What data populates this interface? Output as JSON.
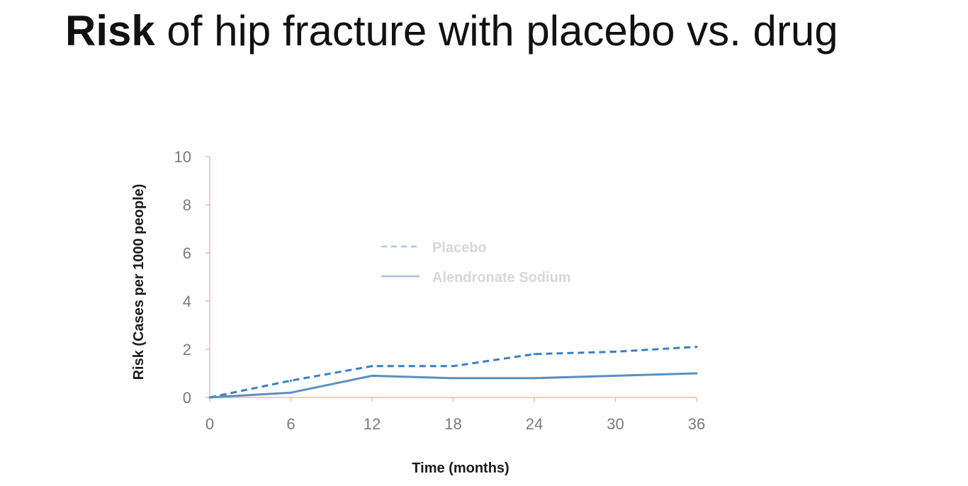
{
  "slide": {
    "title_bold": "Risk",
    "title_rest": " of hip fracture with placebo vs. drug"
  },
  "chart_data": {
    "type": "line",
    "title": "",
    "xlabel": "Time (months)",
    "ylabel": "Risk (Cases per 1000 people)",
    "x": [
      0,
      6,
      12,
      18,
      24,
      30,
      36
    ],
    "xlim": [
      0,
      36
    ],
    "ylim": [
      0,
      10
    ],
    "x_ticks": [
      "0",
      "6",
      "12",
      "18",
      "24",
      "30",
      "36"
    ],
    "y_ticks": [
      "0",
      "2",
      "4",
      "6",
      "8",
      "10"
    ],
    "grid": false,
    "legend_position": "center",
    "axis_color": "#f2b8a8",
    "series": [
      {
        "name": "Placebo",
        "style": "dashed",
        "color": "#3a7fc4",
        "values": [
          0,
          0.7,
          1.3,
          1.3,
          1.8,
          1.9,
          2.1
        ]
      },
      {
        "name": "Alendronate Sodium",
        "style": "solid",
        "color": "#5a8fc0",
        "values": [
          0,
          0.2,
          0.9,
          0.8,
          0.8,
          0.9,
          1.0
        ]
      }
    ]
  }
}
